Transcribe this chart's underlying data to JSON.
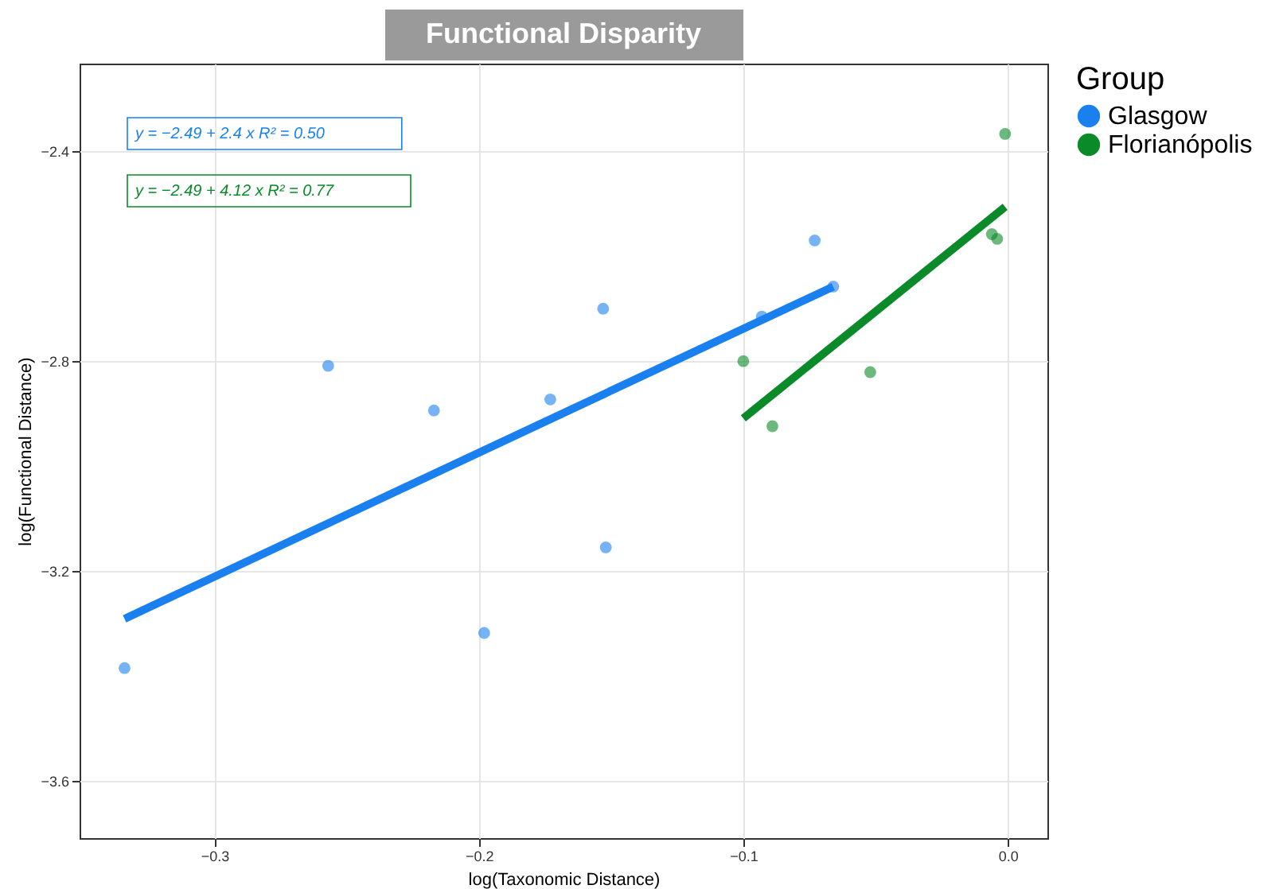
{
  "chart_data": {
    "type": "scatter",
    "title": "Functional Disparity",
    "xlabel": "log(Taxonomic Distance)",
    "ylabel": "log(Functional Distance)",
    "legend_title": "Group",
    "legend": "right",
    "grid": true,
    "marker": "circle",
    "xlim": [
      -0.351,
      0.015
    ],
    "ylim": [
      -3.709,
      -2.233
    ],
    "xticks": [
      -0.3,
      -0.2,
      -0.1,
      {
        "value": 0,
        "label": "0.0"
      }
    ],
    "yticks": [
      -3.6,
      -3.2,
      -2.8,
      -2.4
    ],
    "annotations": [
      "y = −2.49 + 2.4 x   R² = 0.50",
      "y = −2.49 + 4.12 x   R² = 0.77"
    ],
    "series": [
      {
        "name": "Glasgow",
        "color": "#1a80f0",
        "x": [
          -0.334,
          -0.257,
          -0.217,
          -0.198,
          -0.173,
          -0.153,
          -0.152,
          -0.093,
          -0.073,
          -0.066
        ],
        "values": [
          -3.385,
          -2.809,
          -2.894,
          -3.318,
          -2.873,
          -2.7,
          -3.155,
          -2.715,
          -2.57,
          -2.658
        ]
      },
      {
        "name": "Florianópolis",
        "color": "#0a8a28",
        "x": [
          -0.1,
          -0.089,
          -0.052,
          -0.006,
          -0.004,
          -0.001
        ],
        "values": [
          -2.8,
          -2.924,
          -2.821,
          -2.558,
          -2.567,
          -2.367
        ]
      },
      {
        "color": "#1a80f0",
        "type": "line",
        "marker": "none",
        "line_style": "solid",
        "x": [
          -0.334,
          -0.066
        ],
        "values": [
          -3.291,
          -2.658
        ]
      },
      {
        "color": "#0a8a28",
        "type": "line",
        "marker": "none",
        "line_style": "solid",
        "x": [
          -0.1,
          -0.001
        ],
        "values": [
          -2.909,
          -2.506
        ]
      }
    ]
  }
}
